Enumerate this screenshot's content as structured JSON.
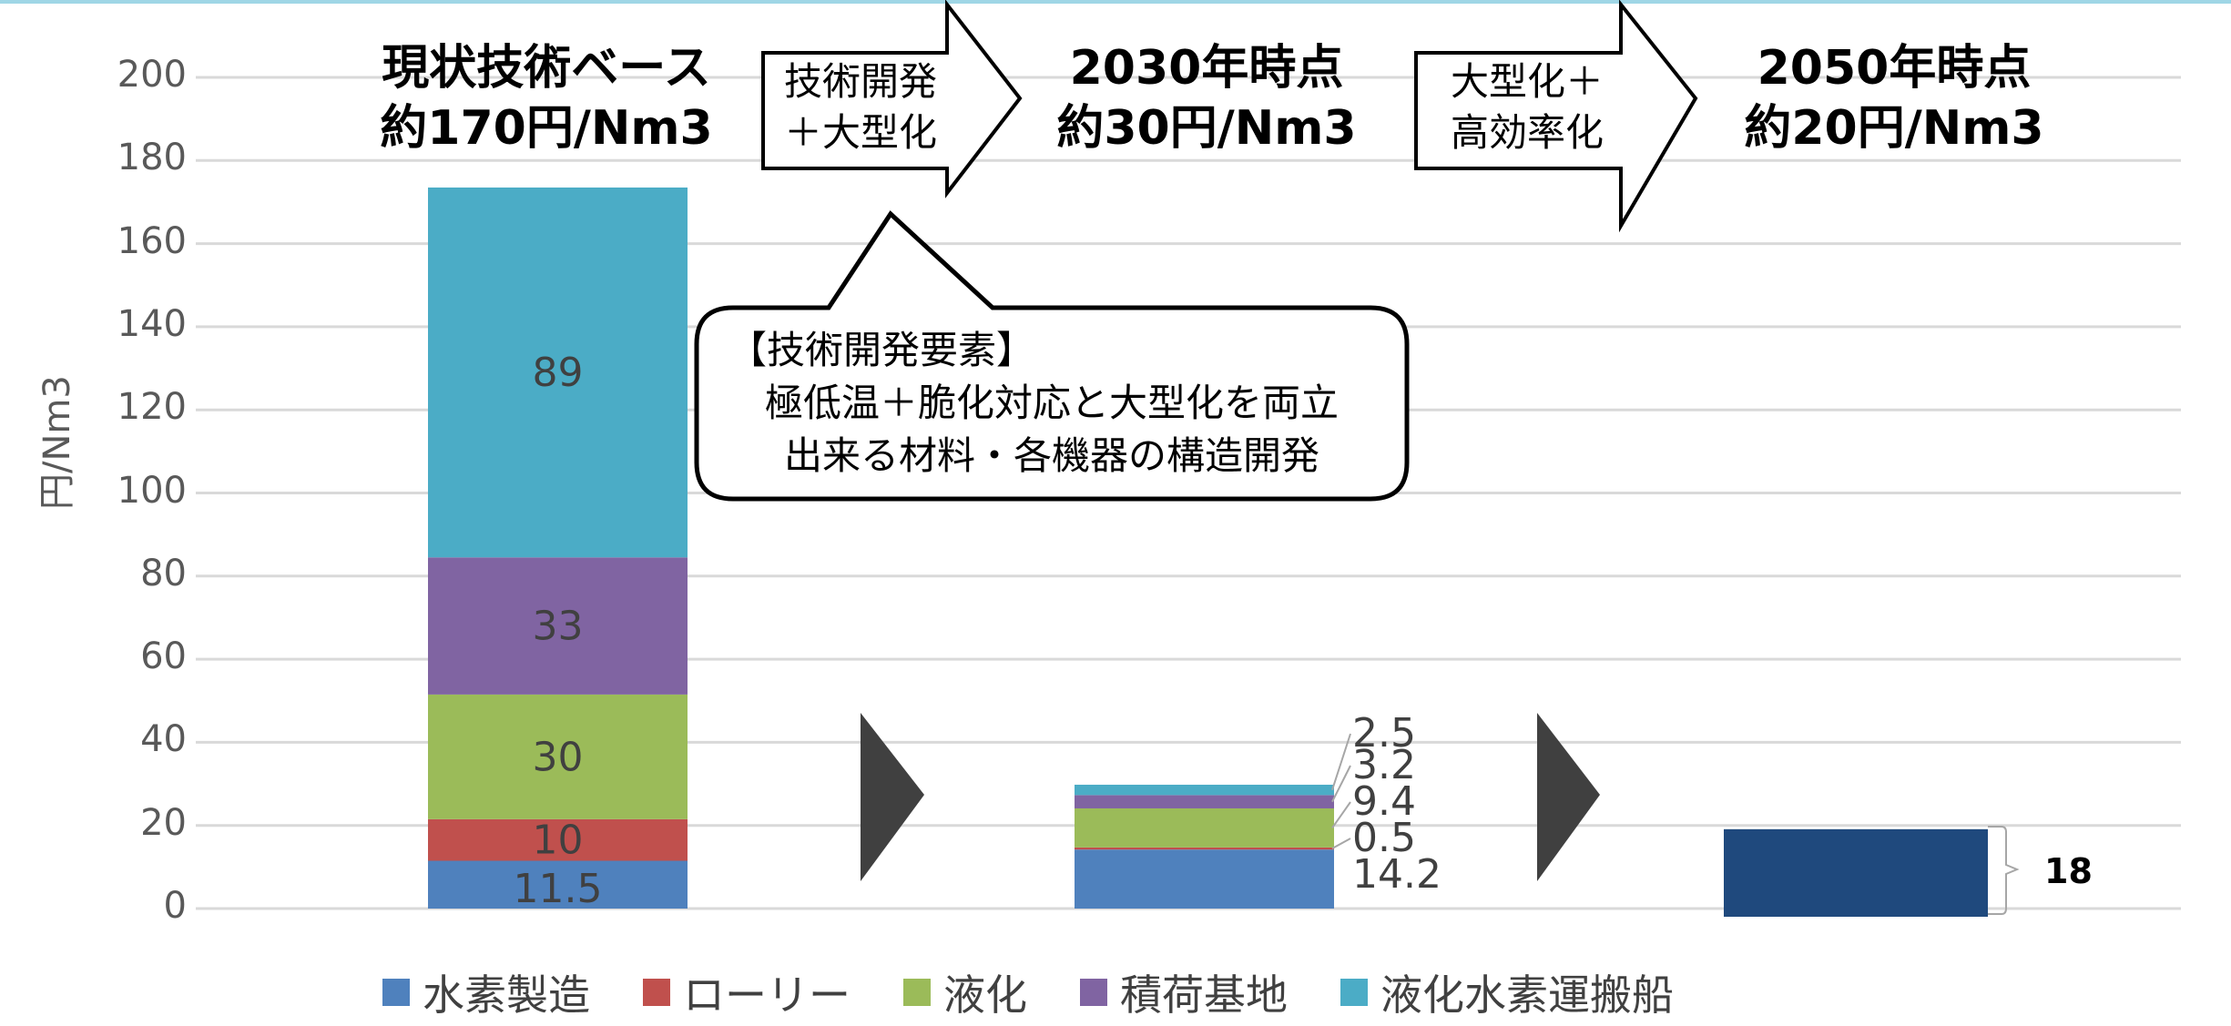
{
  "chart_data": {
    "type": "bar",
    "stacked": true,
    "ylabel": "円/Nm3",
    "ylim": [
      0,
      200
    ],
    "yticks": [
      0,
      20,
      40,
      60,
      80,
      100,
      120,
      140,
      160,
      180,
      200
    ],
    "grid": true,
    "legend_position": "bottom",
    "categories": [
      "現状技術ベース",
      "2030年時点",
      "2050年時点"
    ],
    "category_headings": [
      {
        "line1": "現状技術ベース",
        "line2": "約170円/Nm3"
      },
      {
        "line1": "2030年時点",
        "line2": "約30円/Nm3"
      },
      {
        "line1": "2050年時点",
        "line2": "約20円/Nm3"
      }
    ],
    "series": [
      {
        "name": "水素製造",
        "color": "#4f81bd",
        "values": [
          11.5,
          14.2,
          null
        ],
        "labels": [
          "11.5",
          "14.2",
          ""
        ]
      },
      {
        "name": "ローリー",
        "color": "#c0504d",
        "values": [
          10,
          0.5,
          null
        ],
        "labels": [
          "10",
          "0.5",
          ""
        ]
      },
      {
        "name": "液化",
        "color": "#9bbb59",
        "values": [
          30,
          9.4,
          null
        ],
        "labels": [
          "30",
          "9.4",
          ""
        ]
      },
      {
        "name": "積荷基地",
        "color": "#8064a2",
        "values": [
          33,
          3.2,
          null
        ],
        "labels": [
          "33",
          "3.2",
          ""
        ]
      },
      {
        "name": "液化水素運搬船",
        "color": "#4bacc6",
        "values": [
          89,
          2.5,
          null
        ],
        "labels": [
          "89",
          "2.5",
          ""
        ]
      }
    ],
    "total_2050": {
      "value": 18,
      "label": "18",
      "color": "#1f497d"
    }
  },
  "arrows": [
    {
      "line1": "技術開発",
      "line2": "＋大型化"
    },
    {
      "line1": "大型化＋",
      "line2": "高効率化"
    }
  ],
  "callout": {
    "line1": "【技術開発要素】",
    "line2": "極低温＋脆化対応と大型化を両立",
    "line3": "出来る材料・各機器の構造開発"
  }
}
